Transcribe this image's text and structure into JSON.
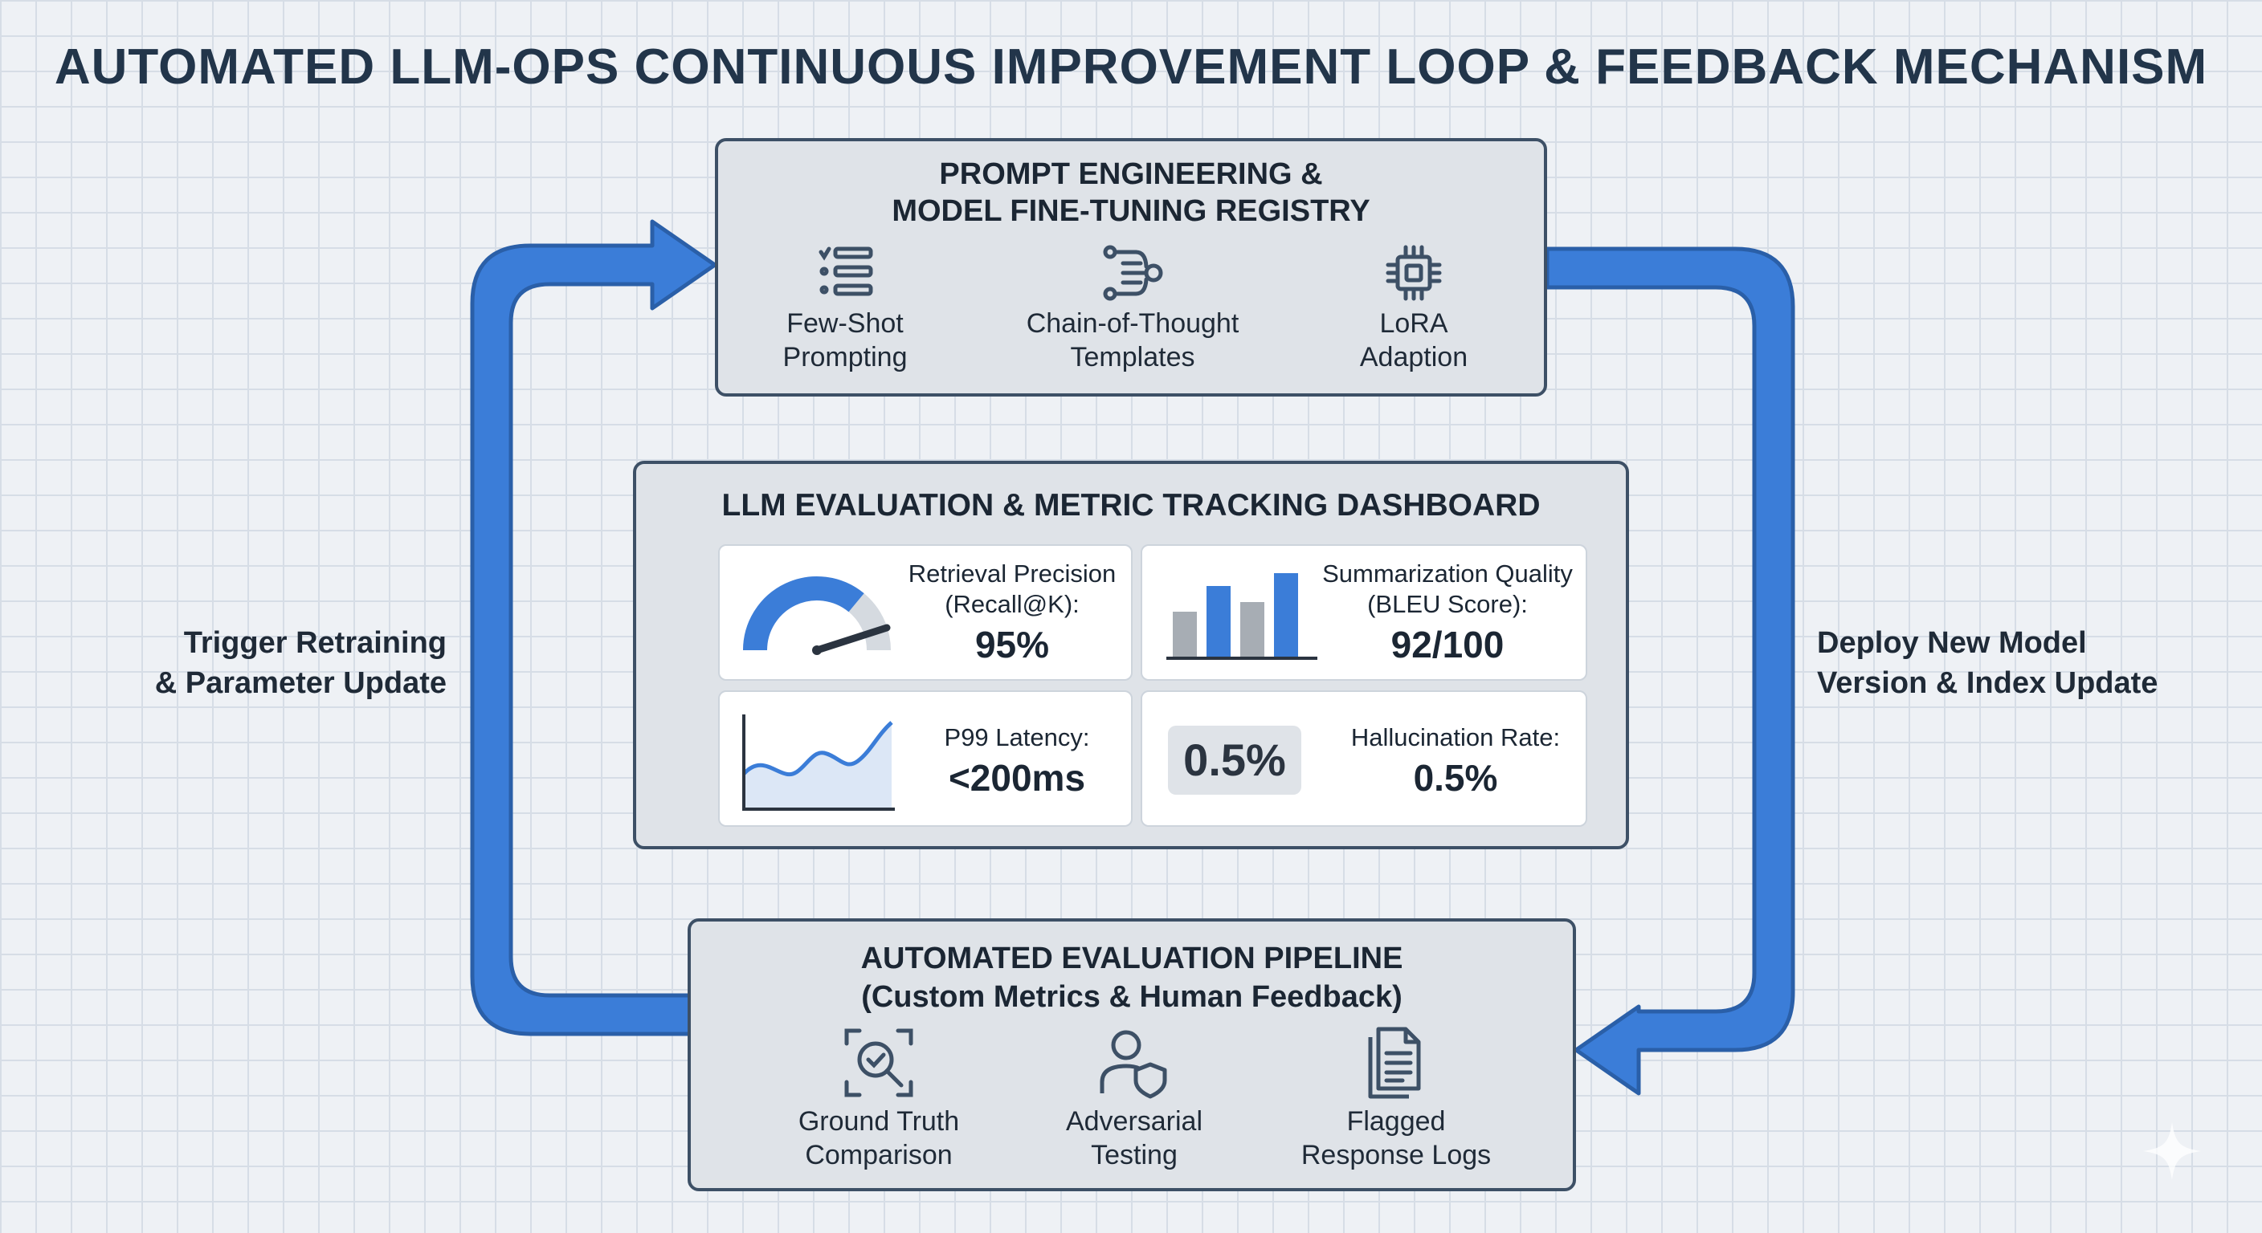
{
  "title": "AUTOMATED LLM-OPS CONTINUOUS IMPROVEMENT LOOP & FEEDBACK MECHANISM",
  "top_box": {
    "title_line1": "PROMPT ENGINEERING &",
    "title_line2": "MODEL FINE-TUNING REGISTRY",
    "items": [
      {
        "line1": "Few-Shot",
        "line2": "Prompting",
        "icon": "list-icon"
      },
      {
        "line1": "Chain-of-Thought",
        "line2": "Templates",
        "icon": "flow-icon"
      },
      {
        "line1": "LoRA",
        "line2": "Adaption",
        "icon": "chip-icon"
      }
    ]
  },
  "dashboard": {
    "title": "LLM EVALUATION & METRIC TRACKING DASHBOARD",
    "cards": [
      {
        "label_line1": "Retrieval Precision",
        "label_line2": "(Recall@K):",
        "value": "95%",
        "icon": "gauge-icon",
        "gauge_fraction": 0.72
      },
      {
        "label_line1": "Summarization Quality",
        "label_line2": "(BLEU Score):",
        "value": "92/100",
        "icon": "bar-chart-icon"
      },
      {
        "label_line1": "P99 Latency:",
        "value": "<200ms",
        "icon": "line-chart-icon"
      },
      {
        "label_line1": "Hallucination Rate:",
        "value": "0.5%",
        "badge": "0.5%"
      }
    ]
  },
  "bottom_box": {
    "title_line1": "AUTOMATED EVALUATION PIPELINE",
    "title_line2": "(Custom Metrics & Human Feedback)",
    "items": [
      {
        "line1": "Ground Truth",
        "line2": "Comparison",
        "icon": "scan-search-icon"
      },
      {
        "line1": "Adversarial",
        "line2": "Testing",
        "icon": "user-shield-icon"
      },
      {
        "line1": "Flagged",
        "line2": "Response Logs",
        "icon": "document-icon"
      }
    ]
  },
  "left_label": {
    "line1": "Trigger Retraining",
    "line2": "& Parameter Update"
  },
  "right_label": {
    "line1": "Deploy New Model",
    "line2": "Version & Index Update"
  },
  "colors": {
    "arrow": "#3b7dd8",
    "arrow_border": "#2a5fa8",
    "box_border": "#3d5066",
    "accent_blue": "#3b7dd8",
    "gray_bar": "#a7adb4"
  }
}
